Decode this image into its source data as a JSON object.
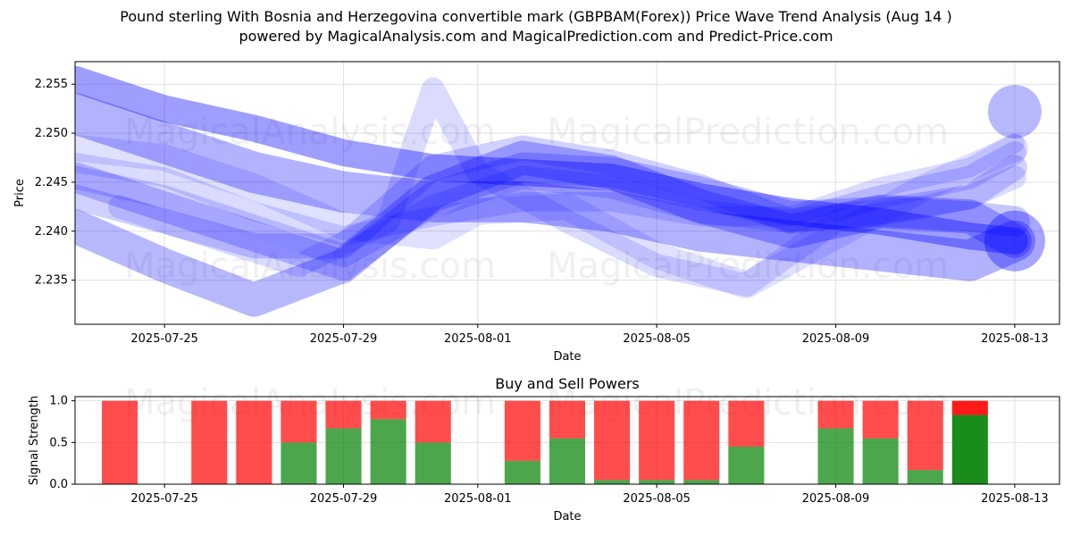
{
  "title_line1": "Pound sterling With Bosnia and Herzegovina convertible mark (GBPBAM(Forex)) Price Wave Trend Analysis (Aug 14 )",
  "title_line2": "powered by MagicalAnalysis.com and MagicalPrediction.com and Predict-Price.com",
  "watermarks": [
    "MagicalAnalysis.com",
    "MagicalPrediction.com"
  ],
  "colors": {
    "wave": "#0000ff",
    "buy": "#008000",
    "sell": "#ff0000",
    "grid": "#e0e0e0"
  },
  "chart_data": [
    {
      "type": "line",
      "title": "",
      "xlabel": "Date",
      "ylabel": "Price",
      "x_ticks": [
        "2025-07-25",
        "2025-07-29",
        "2025-08-01",
        "2025-08-05",
        "2025-08-09",
        "2025-08-13"
      ],
      "y_ticks": [
        2.235,
        2.24,
        2.245,
        2.25,
        2.255
      ],
      "xlim": [
        "2025-07-23",
        "2025-08-14"
      ],
      "ylim": [
        2.2305,
        2.2573
      ],
      "grid": true,
      "series": [
        {
          "x": [
            "2025-07-23",
            "2025-07-25",
            "2025-07-27",
            "2025-07-29",
            "2025-07-31",
            "2025-08-02",
            "2025-08-04",
            "2025-08-06",
            "2025-08-08",
            "2025-08-10",
            "2025-08-12",
            "2025-08-13"
          ],
          "values": [
            2.252,
            2.249,
            2.246,
            2.244,
            2.243,
            2.243,
            2.242,
            2.24,
            2.239,
            2.238,
            2.237,
            2.239
          ]
        },
        {
          "x": [
            "2025-07-23",
            "2025-07-25",
            "2025-07-27",
            "2025-07-29",
            "2025-07-31",
            "2025-08-02",
            "2025-08-04",
            "2025-08-06",
            "2025-08-08",
            "2025-08-10",
            "2025-08-12",
            "2025-08-13"
          ],
          "values": [
            2.2555,
            2.2525,
            2.2505,
            2.248,
            2.2465,
            2.246,
            2.2455,
            2.2435,
            2.242,
            2.241,
            2.2395,
            2.239
          ]
        },
        {
          "x": [
            "2025-07-23",
            "2025-07-25",
            "2025-07-27",
            "2025-07-29",
            "2025-07-31",
            "2025-08-02",
            "2025-08-04",
            "2025-08-06",
            "2025-08-08",
            "2025-08-10",
            "2025-08-12",
            "2025-08-13"
          ],
          "values": [
            2.2405,
            2.2365,
            2.233,
            2.2365,
            2.244,
            2.2475,
            2.246,
            2.2425,
            2.24,
            2.242,
            2.2415,
            2.239
          ]
        },
        {
          "x": [
            "2025-07-23",
            "2025-07-25",
            "2025-07-27",
            "2025-07-29",
            "2025-07-31",
            "2025-08-02",
            "2025-08-04",
            "2025-08-06",
            "2025-08-08",
            "2025-08-10",
            "2025-08-12",
            "2025-08-13"
          ],
          "values": [
            2.2455,
            2.2425,
            2.2395,
            2.2365,
            2.2435,
            2.2465,
            2.246,
            2.244,
            2.2415,
            2.242,
            2.2415,
            2.241
          ]
        },
        {
          "x": [
            "2025-07-23",
            "2025-07-25",
            "2025-07-27",
            "2025-07-29",
            "2025-07-31",
            "2025-08-02",
            "2025-08-04",
            "2025-08-06",
            "2025-08-08",
            "2025-08-10",
            "2025-08-12",
            "2025-08-13"
          ],
          "values": [
            2.2435,
            2.241,
            2.2385,
            2.2385,
            2.2465,
            2.2485,
            2.247,
            2.2445,
            2.241,
            2.242,
            2.2435,
            2.2465
          ]
        },
        {
          "x": [
            "2025-07-23",
            "2025-07-25",
            "2025-07-27",
            "2025-07-29",
            "2025-07-31",
            "2025-08-02",
            "2025-08-04",
            "2025-08-06",
            "2025-08-08",
            "2025-08-10",
            "2025-08-12",
            "2025-08-13"
          ],
          "values": [
            2.2455,
            2.2435,
            2.2405,
            2.2375,
            2.2425,
            2.2455,
            2.2445,
            2.242,
            2.241,
            2.2435,
            2.2455,
            2.248
          ]
        },
        {
          "x": [
            "2025-07-23",
            "2025-07-25",
            "2025-07-27",
            "2025-07-29",
            "2025-07-31",
            "2025-08-02",
            "2025-08-04",
            "2025-08-06",
            "2025-08-08",
            "2025-08-10",
            "2025-08-12",
            "2025-08-13"
          ],
          "values": [
            2.247,
            2.2455,
            2.242,
            2.2395,
            2.2415,
            2.243,
            2.243,
            2.2415,
            2.2415,
            2.2445,
            2.2465,
            2.249
          ]
        },
        {
          "x": [
            "2025-07-23",
            "2025-07-25",
            "2025-07-27",
            "2025-07-29",
            "2025-07-31",
            "2025-08-01",
            "2025-08-03",
            "2025-08-05",
            "2025-08-07",
            "2025-08-09",
            "2025-08-11",
            "2025-08-12",
            "2025-08-13"
          ],
          "values": [
            2.2485,
            2.2475,
            2.2445,
            2.2405,
            2.2395,
            2.242,
            2.2425,
            2.2375,
            2.2345,
            2.2395,
            2.2445,
            2.2465,
            2.2485
          ]
        },
        {
          "x": [
            "2025-07-24",
            "2025-07-26",
            "2025-07-28",
            "2025-07-30",
            "2025-07-31",
            "2025-08-01",
            "2025-08-03",
            "2025-08-05",
            "2025-08-07",
            "2025-08-09",
            "2025-08-11",
            "2025-08-12",
            "2025-08-13"
          ],
          "values": [
            2.2425,
            2.2395,
            2.2365,
            2.241,
            2.2545,
            2.246,
            2.241,
            2.2365,
            2.2345,
            2.241,
            2.2425,
            2.2435,
            2.2455
          ]
        },
        {
          "x": [
            "2025-07-23",
            "2025-08-13"
          ],
          "values": [
            2.2525,
            2.2525
          ]
        }
      ]
    },
    {
      "type": "bar",
      "stacked": true,
      "title": "Buy and Sell Powers",
      "xlabel": "Date",
      "ylabel": "Signal Strength",
      "x_ticks": [
        "2025-07-25",
        "2025-07-29",
        "2025-08-01",
        "2025-08-05",
        "2025-08-09",
        "2025-08-13"
      ],
      "y_ticks": [
        0.0,
        0.5,
        1.0
      ],
      "xlim": [
        "2025-07-23",
        "2025-08-14"
      ],
      "ylim": [
        0,
        1.05
      ],
      "categories": [
        "2025-07-24",
        "2025-07-25",
        "2025-07-26",
        "2025-07-27",
        "2025-07-28",
        "2025-07-29",
        "2025-07-30",
        "2025-07-31",
        "2025-08-01",
        "2025-08-02",
        "2025-08-03",
        "2025-08-04",
        "2025-08-05",
        "2025-08-06",
        "2025-08-07",
        "2025-08-08",
        "2025-08-09",
        "2025-08-10",
        "2025-08-11",
        "2025-08-12",
        "2025-08-13"
      ],
      "series": [
        {
          "name": "",
          "values": [
            0,
            0,
            0,
            0,
            0.5,
            0.67,
            0.78,
            0.5,
            0,
            0.28,
            0.55,
            0.05,
            0.05,
            0.05,
            0.45,
            0,
            0.67,
            0.55,
            0.17,
            0.83,
            0
          ]
        },
        {
          "name": "",
          "values": [
            1.0,
            0,
            1.0,
            1.0,
            0.5,
            0.33,
            0.22,
            0.5,
            0,
            0.72,
            0.45,
            0.95,
            0.95,
            0.95,
            0.55,
            0,
            0.33,
            0.45,
            0.83,
            0.17,
            0
          ]
        }
      ],
      "highlight_category": "2025-08-12"
    }
  ]
}
